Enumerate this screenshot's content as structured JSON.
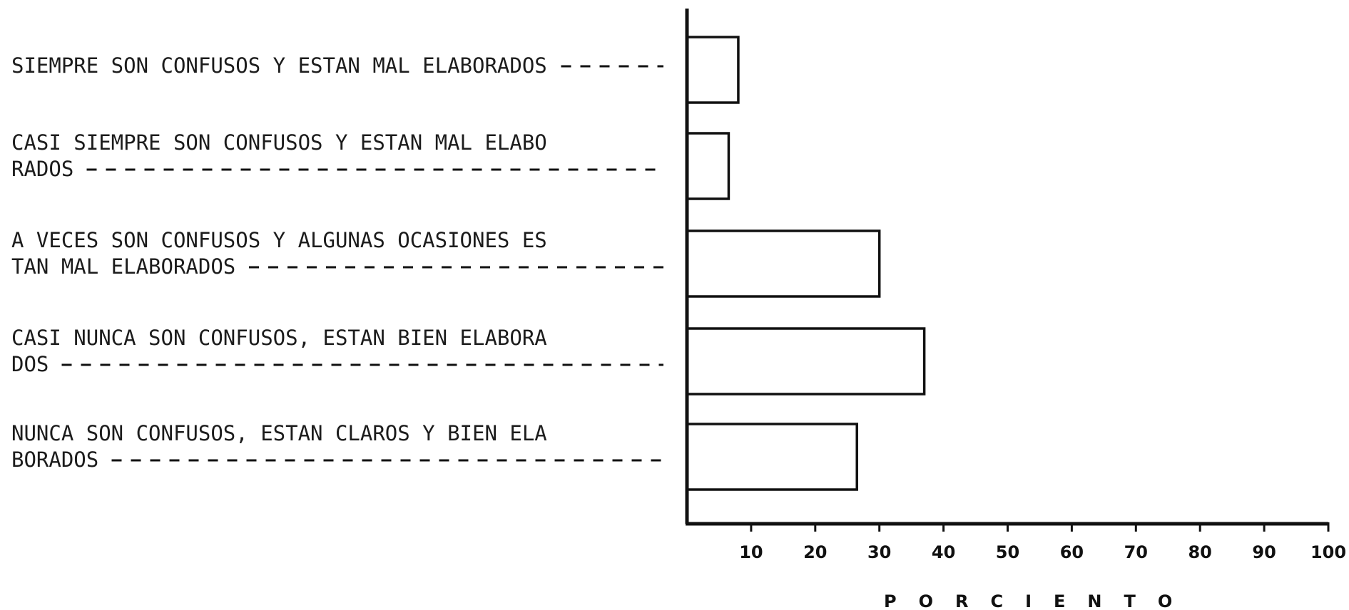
{
  "chart_data": {
    "type": "bar",
    "orientation": "horizontal",
    "categories": [
      [
        "SIEMPRE SON CONFUSOS Y ESTAN MAL ELABORADOS"
      ],
      [
        "CASI SIEMPRE SON CONFUSOS Y ESTAN MAL ELABO",
        "RADOS"
      ],
      [
        "A VECES SON CONFUSOS Y ALGUNAS OCASIONES ES",
        "TAN MAL ELABORADOS"
      ],
      [
        "CASI NUNCA SON CONFUSOS, ESTAN BIEN ELABORA",
        "DOS"
      ],
      [
        "NUNCA SON CONFUSOS, ESTAN CLAROS Y BIEN ELA",
        "BORADOS"
      ]
    ],
    "values": [
      8,
      6.5,
      30,
      37,
      26.5
    ],
    "xlim": [
      0,
      100
    ],
    "xticks": [
      10,
      20,
      30,
      40,
      50,
      60,
      70,
      80,
      90,
      100
    ],
    "xlabel": "PORCIENTO",
    "ylabel": "",
    "title": "",
    "grid": false,
    "colors": {
      "bar_fill": "#ffffff",
      "bar_stroke": "#111111",
      "text": "#1c1c1c"
    }
  }
}
